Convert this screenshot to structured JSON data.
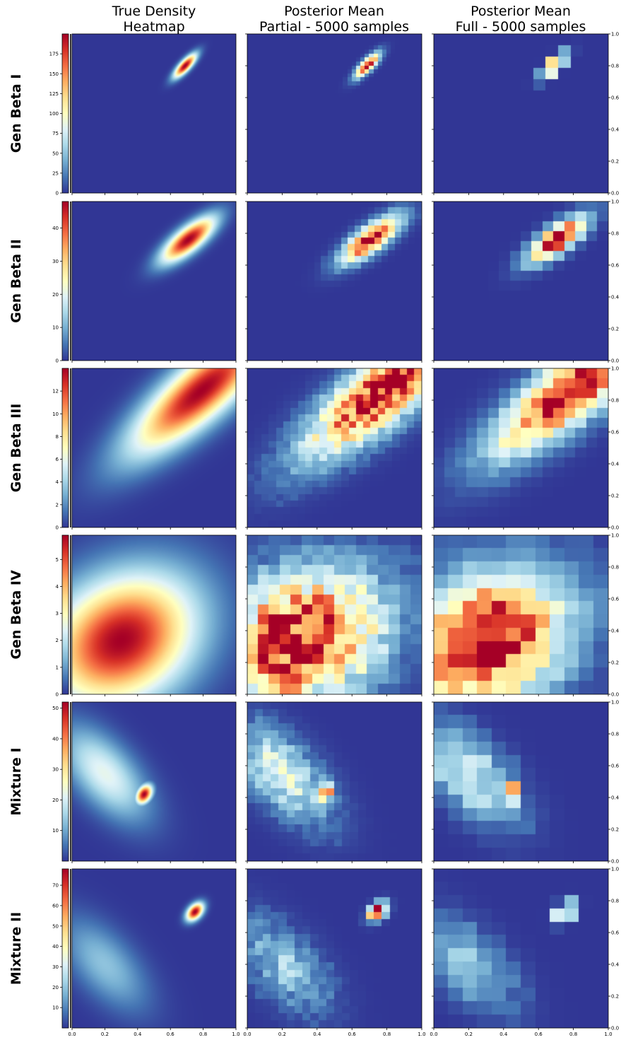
{
  "figure": {
    "column_titles": [
      [
        "True Density",
        "Heatmap"
      ],
      [
        "Posterior Mean",
        "Partial - 5000 samples"
      ],
      [
        "Posterior Mean",
        "Full - 5000 samples"
      ]
    ],
    "row_labels": [
      "Gen Beta I",
      "Gen Beta II",
      "Gen Beta III",
      "Gen Beta IV",
      "Mixture I",
      "Mixture II"
    ],
    "x_tick_labels_first_column": [
      "0.0",
      "0.2",
      "0.4",
      "0.6",
      "0.8",
      "1.0"
    ],
    "x_tick_labels_other_columns": [
      "0.0",
      "0.2",
      "0.4",
      "0.6",
      "0.8",
      "1.0"
    ],
    "y_tick_labels_right": [
      "0.0",
      "0.2",
      "0.4",
      "0.6",
      "0.8",
      "1.0"
    ],
    "colormap": "RdYlBu_r",
    "colormap_stops": [
      "#313695",
      "#4575b4",
      "#74add1",
      "#abd9e9",
      "#e0f3f8",
      "#ffffbf",
      "#fee090",
      "#fdae61",
      "#f46d43",
      "#d73027",
      "#a50026"
    ]
  },
  "chart_data": [
    {
      "type": "heatmap",
      "row_label": "Gen Beta I",
      "xlim": [
        0,
        1
      ],
      "ylim": [
        0,
        1
      ],
      "colorbar": {
        "vmax": 200,
        "ticks": [
          0,
          25,
          50,
          75,
          100,
          125,
          150,
          175
        ]
      },
      "true_density": {
        "peak": [
          0.69,
          0.8
        ],
        "spread": 0.022,
        "elong": 3.0,
        "angle_deg": 48
      },
      "partial": {
        "peak": [
          0.7,
          0.8
        ],
        "cells": 40,
        "noise": 0.15
      },
      "full": {
        "peak": [
          0.7,
          0.78
        ],
        "cells": 14,
        "noise": 0.05
      }
    },
    {
      "type": "heatmap",
      "row_label": "Gen Beta II",
      "xlim": [
        0,
        1
      ],
      "ylim": [
        0,
        1
      ],
      "colorbar": {
        "vmax": 48,
        "ticks": [
          0,
          10,
          20,
          30,
          40
        ]
      },
      "true_density": {
        "peak": [
          0.71,
          0.76
        ],
        "spread": 0.05,
        "elong": 2.8,
        "angle_deg": 40
      },
      "partial": {
        "peak": [
          0.71,
          0.76
        ],
        "cells": 26,
        "noise": 0.2
      },
      "full": {
        "peak": [
          0.72,
          0.76
        ],
        "cells": 16,
        "noise": 0.15
      }
    },
    {
      "type": "heatmap",
      "row_label": "Gen Beta III",
      "xlim": [
        0,
        1
      ],
      "ylim": [
        0,
        1
      ],
      "colorbar": {
        "vmax": 14,
        "ticks": [
          0,
          2,
          4,
          6,
          8,
          10,
          12
        ]
      },
      "true_density": {
        "peak": [
          0.79,
          0.86
        ],
        "spread": 0.12,
        "elong": 3.2,
        "angle_deg": 42
      },
      "partial": {
        "peak": [
          0.79,
          0.86
        ],
        "cells": 24,
        "noise": 0.3
      },
      "full": {
        "peak": [
          0.8,
          0.83
        ],
        "cells": 16,
        "noise": 0.2
      }
    },
    {
      "type": "heatmap",
      "row_label": "Gen Beta IV",
      "xlim": [
        0,
        1
      ],
      "ylim": [
        0,
        1
      ],
      "colorbar": {
        "vmax": 5.9,
        "ticks": [
          0,
          1,
          2,
          3,
          4,
          5
        ]
      },
      "true_density": {
        "peak": [
          0.3,
          0.34
        ],
        "spread": 0.26,
        "elong": 1.3,
        "angle_deg": 35
      },
      "partial": {
        "peak": [
          0.3,
          0.34
        ],
        "cells": 16,
        "noise": 0.35
      },
      "full": {
        "peak": [
          0.3,
          0.34
        ],
        "cells": 12,
        "noise": 0.25
      }
    },
    {
      "type": "heatmap",
      "row_label": "Mixture I",
      "xlim": [
        0,
        1
      ],
      "ylim": [
        0,
        1
      ],
      "colorbar": {
        "vmax": 52,
        "ticks": [
          10,
          20,
          30,
          40,
          50
        ]
      },
      "true_density": {
        "peak": [
          0.44,
          0.42
        ],
        "spread": 0.03,
        "elong": 1.5,
        "angle_deg": 60
      },
      "broad_component": {
        "peak": [
          0.2,
          0.55
        ],
        "weight": 0.42
      },
      "partial": {
        "peak": [
          0.44,
          0.42
        ],
        "cells": 22,
        "noise": 0.35
      },
      "full": {
        "peak": [
          0.42,
          0.42
        ],
        "cells": 12,
        "noise": 0.3
      }
    },
    {
      "type": "heatmap",
      "row_label": "Mixture II",
      "xlim": [
        0,
        1
      ],
      "ylim": [
        0,
        1
      ],
      "colorbar": {
        "vmax": 78,
        "ticks": [
          10,
          20,
          30,
          40,
          50,
          60,
          70
        ]
      },
      "true_density": {
        "peak": [
          0.75,
          0.73
        ],
        "spread": 0.028,
        "elong": 1.6,
        "angle_deg": 50
      },
      "broad_component": {
        "peak": [
          0.2,
          0.4
        ],
        "weight": 0.25
      },
      "partial": {
        "peak": [
          0.72,
          0.72
        ],
        "cells": 22,
        "noise": 0.4
      },
      "full": {
        "peak": [
          0.72,
          0.7
        ],
        "cells": 12,
        "noise": 0.3
      }
    }
  ]
}
